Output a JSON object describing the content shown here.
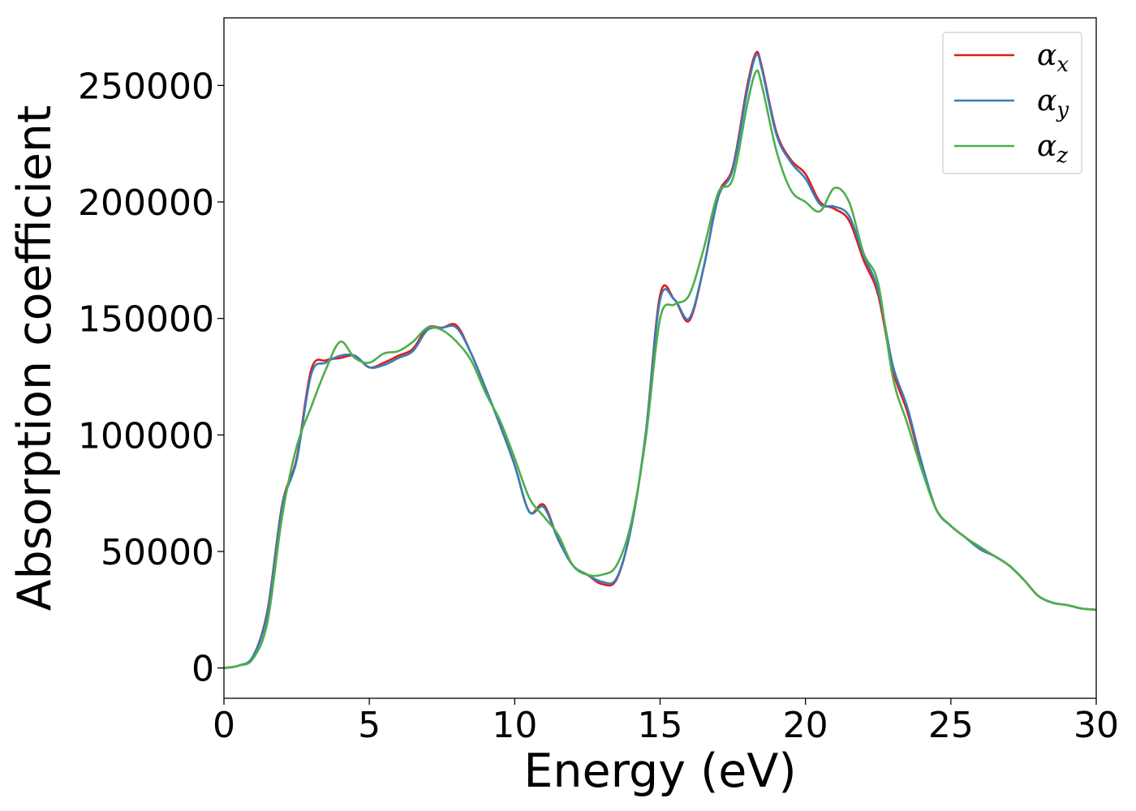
{
  "chart_data": {
    "type": "line",
    "title": "",
    "xlabel": "Energy (eV)",
    "ylabel": "Absorption coefficient",
    "xlim": [
      0,
      30
    ],
    "ylim": [
      -13000,
      279000
    ],
    "xticks": [
      0,
      5,
      10,
      15,
      20,
      25,
      30
    ],
    "yticks": [
      0,
      50000,
      100000,
      150000,
      200000,
      250000
    ],
    "grid": false,
    "legend": "top-right",
    "x": [
      0,
      0.5,
      1.0,
      1.5,
      2.0,
      2.5,
      3.0,
      3.5,
      4.0,
      4.5,
      5.0,
      5.5,
      6.0,
      6.5,
      7.0,
      7.5,
      8.0,
      8.5,
      9.0,
      9.5,
      10.0,
      10.5,
      11.0,
      11.5,
      12.0,
      12.5,
      13.0,
      13.5,
      14.0,
      14.5,
      15.0,
      15.5,
      16.0,
      16.5,
      17.0,
      17.5,
      18.0,
      18.3,
      18.5,
      19.0,
      19.5,
      20.0,
      20.5,
      21.0,
      21.5,
      22.0,
      22.5,
      23.0,
      23.5,
      24.0,
      24.5,
      25.0,
      25.5,
      26.0,
      26.5,
      27.0,
      27.5,
      28.0,
      28.5,
      29.0,
      29.5,
      30.0
    ],
    "series": [
      {
        "name": "α",
        "subscript": "x",
        "color": "#e41a1c",
        "values": [
          0,
          1000,
          5000,
          25000,
          70000,
          90000,
          128000,
          132000,
          133000,
          134000,
          129000,
          131000,
          134000,
          137000,
          146000,
          146000,
          147000,
          135000,
          120000,
          104000,
          87000,
          67000,
          70000,
          55000,
          44000,
          40000,
          36000,
          38000,
          60000,
          100000,
          160000,
          158000,
          149000,
          172000,
          203000,
          215000,
          250000,
          264000,
          258000,
          230000,
          218000,
          212000,
          200000,
          197000,
          192000,
          175000,
          160000,
          128000,
          110000,
          87000,
          68000,
          61000,
          56000,
          51000,
          48000,
          44000,
          38000,
          31000,
          28000,
          27000,
          25500,
          25000
        ]
      },
      {
        "name": "α",
        "subscript": "y",
        "color": "#377eb8",
        "values": [
          0,
          1000,
          5000,
          24000,
          69000,
          89000,
          126000,
          131000,
          134000,
          134000,
          129000,
          130000,
          133000,
          136000,
          145000,
          146000,
          146000,
          135000,
          120000,
          104000,
          87000,
          67000,
          69000,
          55000,
          44000,
          40000,
          37000,
          38500,
          60000,
          100000,
          158000,
          158000,
          150000,
          172000,
          202000,
          214000,
          248000,
          263000,
          257000,
          229000,
          217000,
          210000,
          199000,
          198000,
          194000,
          177000,
          162000,
          130000,
          112000,
          88000,
          68000,
          61000,
          56000,
          51000,
          48000,
          44000,
          38000,
          31000,
          28000,
          27000,
          25500,
          25000
        ]
      },
      {
        "name": "α",
        "subscript": "z",
        "color": "#4daf4a",
        "values": [
          0,
          1000,
          4000,
          20000,
          65000,
          95000,
          112000,
          128000,
          140000,
          133000,
          131000,
          135000,
          136000,
          140000,
          146000,
          145000,
          140000,
          132000,
          118000,
          106000,
          90000,
          73000,
          65000,
          57000,
          44000,
          40000,
          40000,
          44000,
          62000,
          98000,
          150000,
          156000,
          160000,
          180000,
          204000,
          210000,
          242000,
          256000,
          250000,
          222000,
          205000,
          200000,
          196000,
          206000,
          200000,
          178000,
          165000,
          125000,
          105000,
          85000,
          68000,
          61000,
          56000,
          52000,
          48000,
          44000,
          38000,
          31000,
          28000,
          27000,
          25500,
          25000
        ]
      }
    ]
  }
}
